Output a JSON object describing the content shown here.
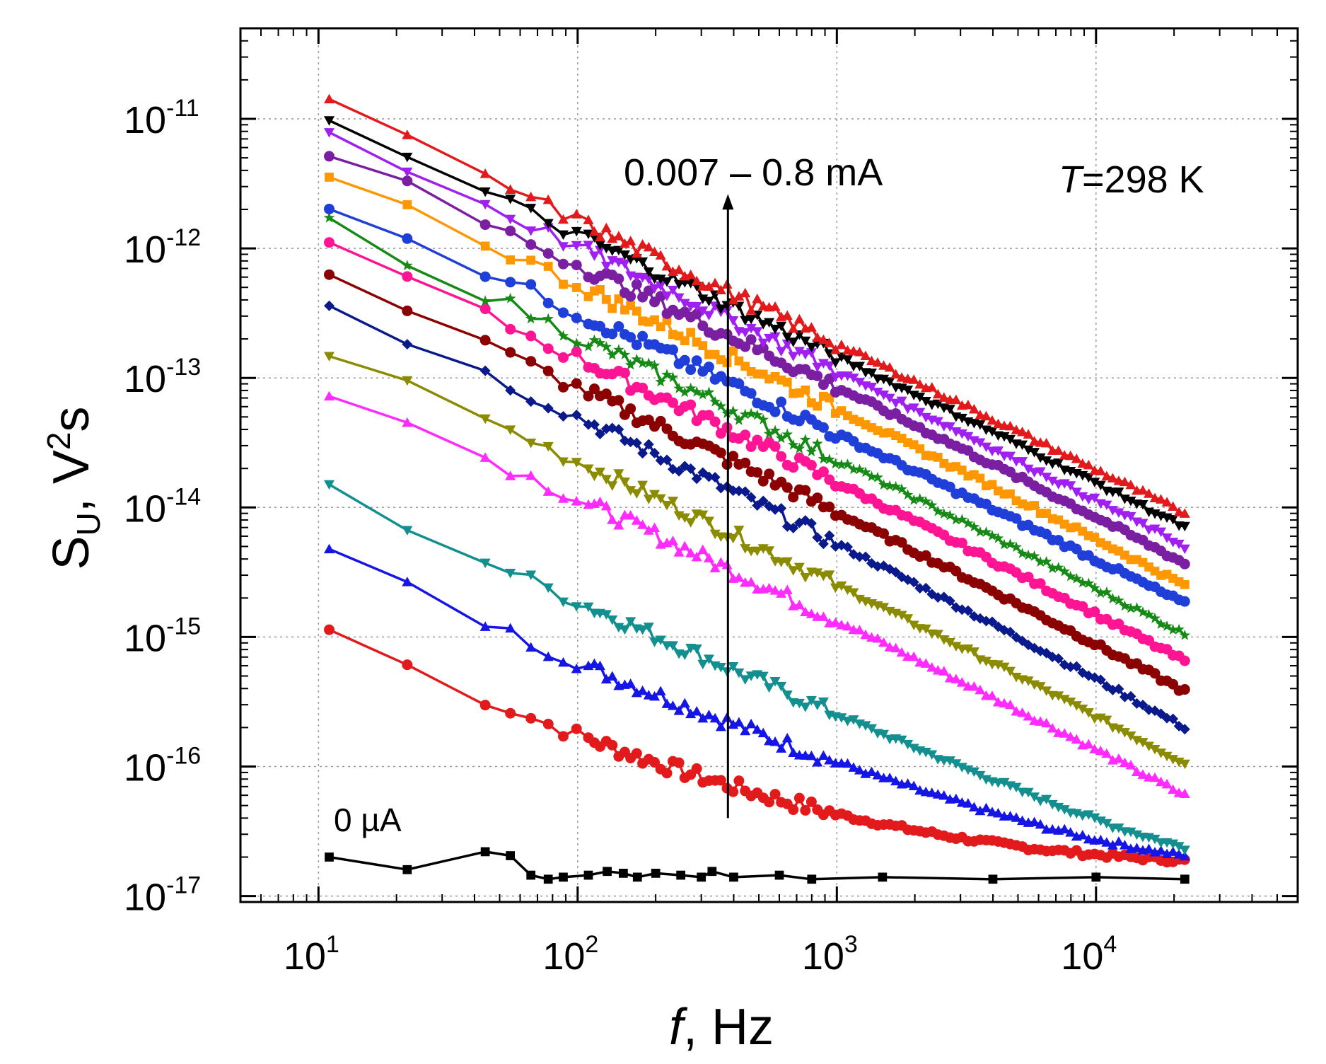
{
  "chart_data": {
    "type": "line",
    "x_scale": "log",
    "y_scale": "log",
    "xlim": [
      5,
      60000
    ],
    "ylim": [
      9e-18,
      5e-11
    ],
    "grid": true,
    "legend": "none",
    "x_ticks": [
      {
        "base": "10",
        "exp": "1",
        "value": 10
      },
      {
        "base": "10",
        "exp": "2",
        "value": 100
      },
      {
        "base": "10",
        "exp": "3",
        "value": 1000
      },
      {
        "base": "10",
        "exp": "4",
        "value": 10000
      }
    ],
    "y_ticks": [
      {
        "base": "10",
        "exp": "-11",
        "value": 1e-11
      },
      {
        "base": "10",
        "exp": "-12",
        "value": 1e-12
      },
      {
        "base": "10",
        "exp": "-13",
        "value": 1e-13
      },
      {
        "base": "10",
        "exp": "-14",
        "value": 1e-14
      },
      {
        "base": "10",
        "exp": "-15",
        "value": 1e-15
      },
      {
        "base": "10",
        "exp": "-16",
        "value": 1e-16
      },
      {
        "base": "10",
        "exp": "-17",
        "value": 1e-17
      }
    ],
    "xlabel": {
      "italic": "f",
      "rest": ", Hz"
    },
    "ylabel": {
      "main": "S",
      "sub": "U",
      "mid": ", V",
      "sup": "2",
      "tail": "s"
    },
    "annotations": {
      "range_label": "0.007 – 0.8 mA",
      "temp_italic": "T",
      "temp_rest": "=298 K",
      "zero_label": "0 µA"
    },
    "arrow": {
      "x": 380,
      "y_from": 4e-17,
      "y_to": 2.5e-12
    },
    "series": [
      {
        "name": "red-top",
        "color": "#e31a1c",
        "marker": "tri-up",
        "y10": 1.4e-11,
        "slope": -0.92,
        "y_end": 9e-15
      },
      {
        "name": "black",
        "color": "#000000",
        "marker": "tri-down",
        "y10": 1e-11,
        "slope": -0.88,
        "y_end": 7e-15
      },
      {
        "name": "violet",
        "color": "#a020f0",
        "marker": "tri-down",
        "y10": 8.5e-12,
        "slope": -0.9,
        "y_end": 5e-15
      },
      {
        "name": "purple",
        "color": "#7b1fa2",
        "marker": "circle",
        "y10": 5.8e-12,
        "slope": -0.86,
        "y_end": 3.7e-15
      },
      {
        "name": "orange",
        "color": "#ff9800",
        "marker": "square",
        "y10": 4.2e-12,
        "slope": -0.88,
        "y_end": 2.5e-15
      },
      {
        "name": "blue",
        "color": "#1f3fd8",
        "marker": "circle",
        "y10": 2.5e-12,
        "slope": -0.88,
        "y_end": 1.8e-15
      },
      {
        "name": "green",
        "color": "#158a15",
        "marker": "star",
        "y10": 1.7e-12,
        "slope": -0.89,
        "y_end": 1.05e-15
      },
      {
        "name": "pink",
        "color": "#ff1493",
        "marker": "circle",
        "y10": 1.15e-12,
        "slope": -0.88,
        "y_end": 6.5e-16
      },
      {
        "name": "dark-red",
        "color": "#8b0000",
        "marker": "circle",
        "y10": 6.8e-13,
        "slope": -0.88,
        "y_end": 3.8e-16
      },
      {
        "name": "navy",
        "color": "#0a1a8c",
        "marker": "diamond",
        "y10": 4.1e-13,
        "slope": -0.88,
        "y_end": 2e-16
      },
      {
        "name": "olive",
        "color": "#8b8b00",
        "marker": "tri-down",
        "y10": 1.75e-13,
        "slope": -0.86,
        "y_end": 1.05e-16
      },
      {
        "name": "magenta",
        "color": "#ff2bff",
        "marker": "tri-up",
        "y10": 9e-14,
        "slope": -0.86,
        "y_end": 6e-17
      },
      {
        "name": "teal",
        "color": "#138f8f",
        "marker": "tri-down",
        "y10": 1.5e-14,
        "slope": -0.92,
        "y_end": 1.9e-17,
        "floor": 1.4e-17
      },
      {
        "name": "blue-low",
        "color": "#1515e6",
        "marker": "tri-up",
        "y10": 5e-15,
        "slope": -0.95,
        "y_end": 1.5e-17,
        "floor": 1.4e-17
      },
      {
        "name": "red-low",
        "color": "#e31a1c",
        "marker": "circle",
        "y10": 1.25e-15,
        "slope": -0.97,
        "y_end": 1.35e-17,
        "floor": 1.3e-17
      },
      {
        "name": "zero-current",
        "color": "#000000",
        "marker": "square",
        "floor": 1.4e-17,
        "points": [
          [
            11,
            2e-17
          ],
          [
            22,
            1.6e-17
          ],
          [
            44,
            2.2e-17
          ],
          [
            55,
            2.05e-17
          ],
          [
            66,
            1.45e-17
          ],
          [
            77,
            1.35e-17
          ],
          [
            88,
            1.4e-17
          ],
          [
            110,
            1.45e-17
          ],
          [
            130,
            1.55e-17
          ],
          [
            150,
            1.5e-17
          ],
          [
            170,
            1.4e-17
          ],
          [
            200,
            1.5e-17
          ],
          [
            250,
            1.45e-17
          ],
          [
            300,
            1.4e-17
          ],
          [
            330,
            1.55e-17
          ],
          [
            400,
            1.4e-17
          ],
          [
            600,
            1.45e-17
          ],
          [
            800,
            1.35e-17
          ],
          [
            1500,
            1.4e-17
          ],
          [
            4000,
            1.35e-17
          ],
          [
            10000,
            1.4e-17
          ],
          [
            22000,
            1.35e-17
          ]
        ]
      }
    ]
  }
}
